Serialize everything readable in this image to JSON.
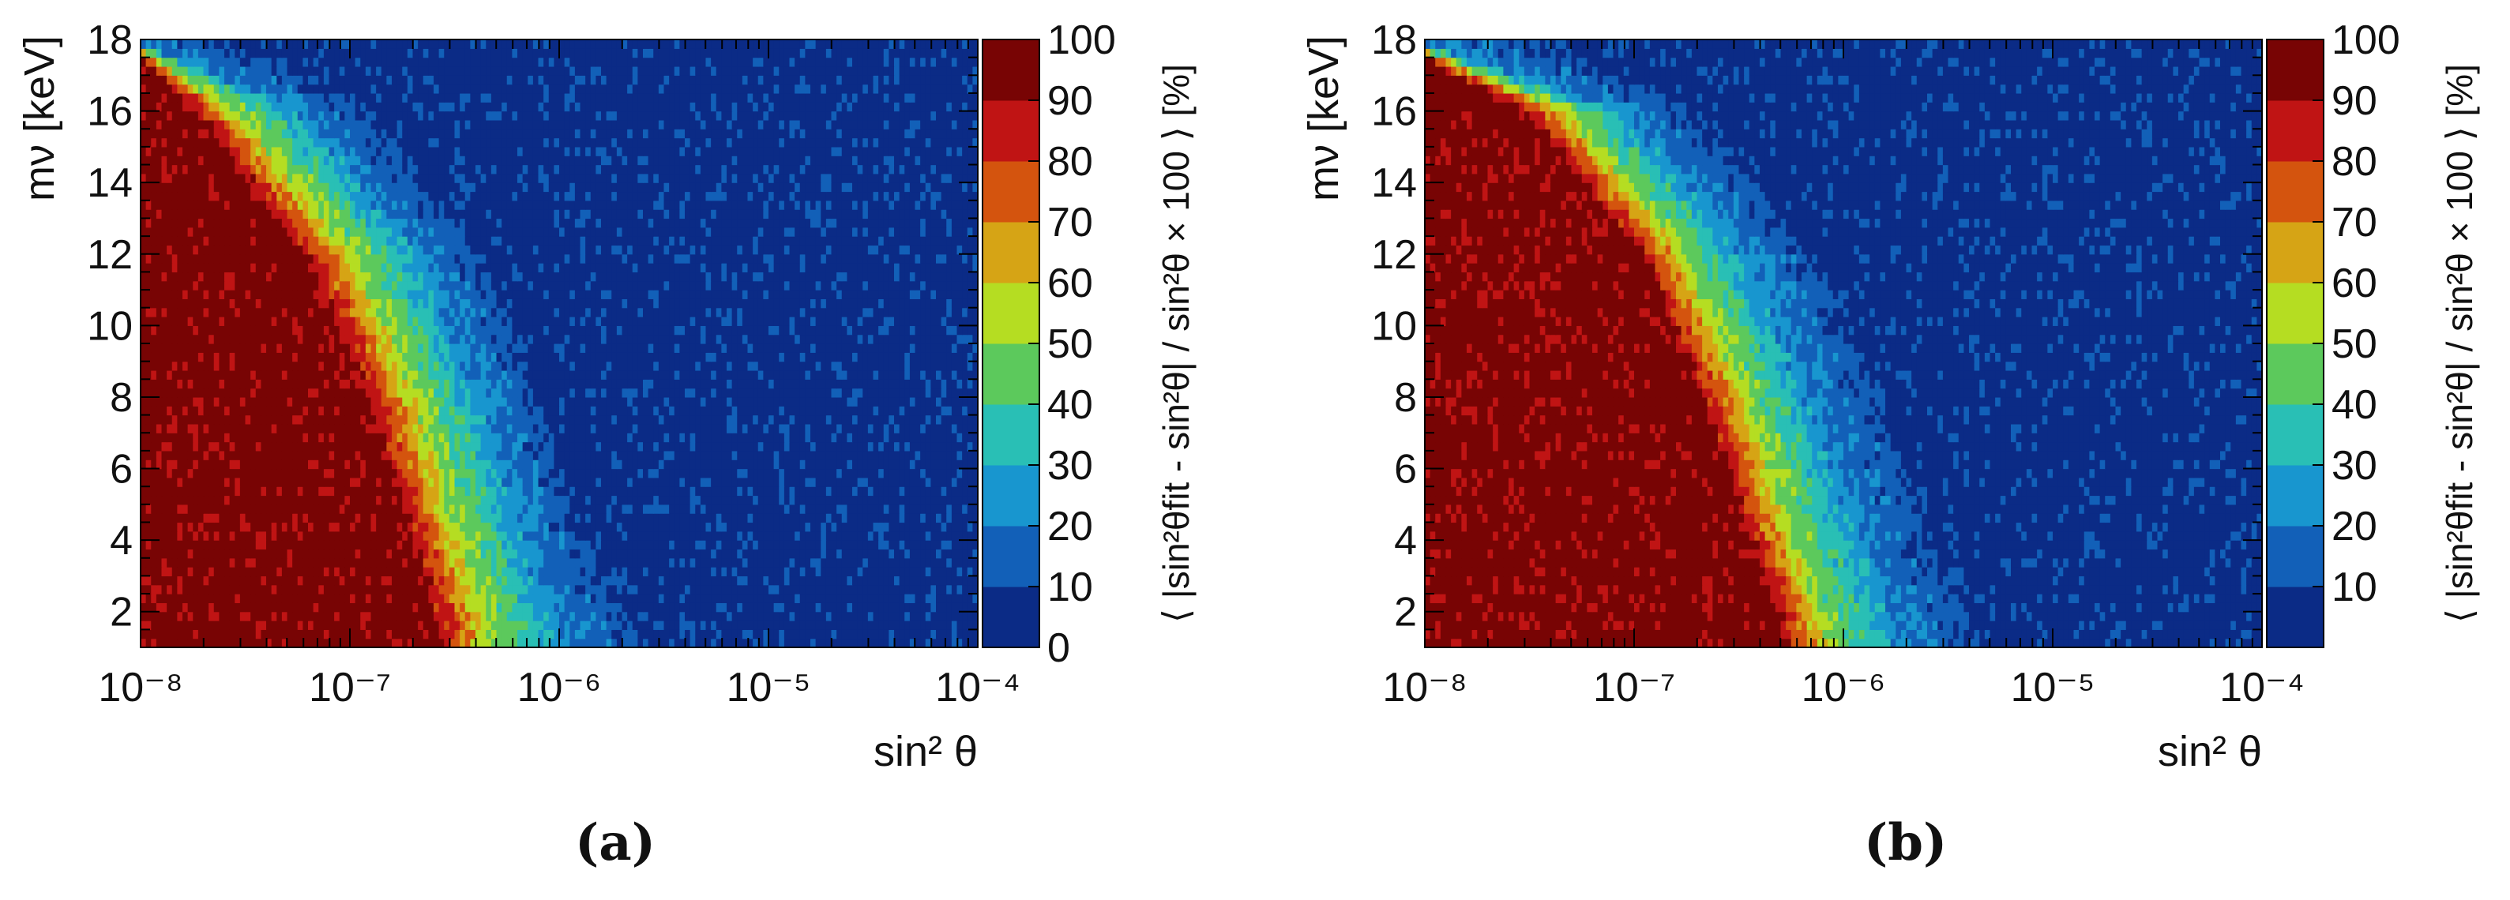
{
  "chart_data": [
    {
      "type": "heatmap",
      "panel_label": "(a)",
      "x_scale": "log",
      "xlim": [
        1e-08,
        0.0001
      ],
      "ylim": [
        1,
        18
      ],
      "xlabel": "sin² θ",
      "ylabel": "mν [keV]",
      "x_tick_values": [
        1e-08,
        1e-07,
        1e-06,
        1e-05,
        0.0001
      ],
      "x_tick_labels": [
        "10⁻⁸",
        "10⁻⁷",
        "10⁻⁶",
        "10⁻⁵",
        "10⁻⁴"
      ],
      "y_ticks": [
        2,
        4,
        6,
        8,
        10,
        12,
        14,
        16,
        18
      ],
      "y_tick_labels": [
        "2",
        "4",
        "6",
        "8",
        "10",
        "12",
        "14",
        "16",
        "18"
      ],
      "colorbar": {
        "label": "⟨ |sin²θfit - sin²θ| / sin²θ × 100 ⟩ [%]",
        "range": [
          0,
          100
        ],
        "ticks": [
          0,
          10,
          20,
          30,
          40,
          50,
          60,
          70,
          80,
          90,
          100
        ],
        "tick_labels": [
          "0",
          "10",
          "20",
          "30",
          "40",
          "50",
          "60",
          "70",
          "80",
          "90",
          "100"
        ]
      },
      "contours": [
        {
          "level": 90,
          "mass_keV": [
            1,
            4,
            8,
            12,
            16,
            17.5
          ],
          "sin2theta": [
            2.8e-07,
            2e-07,
            1.2e-07,
            6e-08,
            1.8e-08,
            1e-08
          ]
        },
        {
          "level": 50,
          "mass_keV": [
            1,
            4,
            8,
            12,
            16,
            17.7
          ],
          "sin2theta": [
            5e-07,
            3.5e-07,
            2.2e-07,
            1.1e-07,
            3e-08,
            1e-08
          ]
        },
        {
          "level": 20,
          "mass_keV": [
            1,
            4,
            8,
            12,
            16,
            17.9
          ],
          "sin2theta": [
            1.2e-06,
            7.5e-07,
            4.6e-07,
            2.3e-07,
            6.5e-08,
            1e-08
          ]
        },
        {
          "level": 10,
          "mass_keV": [
            1,
            4,
            8,
            12,
            16,
            18
          ],
          "sin2theta": [
            2.5e-06,
            1.4e-06,
            8e-07,
            4.2e-07,
            1.3e-07,
            2.5e-08
          ]
        }
      ]
    },
    {
      "type": "heatmap",
      "panel_label": "(b)",
      "x_scale": "log",
      "xlim": [
        1e-08,
        0.0001
      ],
      "ylim": [
        1,
        18
      ],
      "xlabel": "sin² θ",
      "ylabel": "mν [keV]",
      "x_tick_values": [
        1e-08,
        1e-07,
        1e-06,
        1e-05,
        0.0001
      ],
      "x_tick_labels": [
        "10⁻⁸",
        "10⁻⁷",
        "10⁻⁶",
        "10⁻⁵",
        "10⁻⁴"
      ],
      "y_ticks": [
        2,
        4,
        6,
        8,
        10,
        12,
        14,
        16,
        18
      ],
      "y_tick_labels": [
        "2",
        "4",
        "6",
        "8",
        "10",
        "12",
        "14",
        "16",
        "18"
      ],
      "colorbar": {
        "label": "⟨ |sin²θfit - sin²θ| / sin²θ × 100 ⟩ [%]",
        "range": [
          0,
          100
        ],
        "ticks": [
          10,
          20,
          30,
          40,
          50,
          60,
          70,
          80,
          90,
          100
        ],
        "tick_labels": [
          "10",
          "20",
          "30",
          "40",
          "50",
          "60",
          "70",
          "80",
          "90",
          "100"
        ]
      },
      "contours": [
        {
          "level": 90,
          "mass_keV": [
            1,
            4,
            8,
            12,
            16,
            17.5
          ],
          "sin2theta": [
            5.5e-07,
            3.6e-07,
            2.1e-07,
            1.1e-07,
            3e-08,
            1e-08
          ]
        },
        {
          "level": 50,
          "mass_keV": [
            1,
            4,
            8,
            12,
            16,
            17.7
          ],
          "sin2theta": [
            9e-07,
            6e-07,
            3.6e-07,
            1.8e-07,
            5e-08,
            1e-08
          ]
        },
        {
          "level": 20,
          "mass_keV": [
            1,
            4,
            8,
            12,
            16,
            17.9
          ],
          "sin2theta": [
            2e-06,
            1.3e-06,
            7.5e-07,
            3.8e-07,
            1e-07,
            1e-08
          ]
        },
        {
          "level": 10,
          "mass_keV": [
            1,
            4,
            8,
            12,
            16,
            18
          ],
          "sin2theta": [
            4.5e-06,
            2.7e-06,
            1.5e-06,
            7.5e-07,
            2e-07,
            3.5e-08
          ]
        }
      ]
    }
  ],
  "colors": {
    "palette": [
      "#0b2b86",
      "#1260b8",
      "#1896cf",
      "#29bfb5",
      "#5cc95c",
      "#b5dd22",
      "#d6a415",
      "#d4540e",
      "#c01414",
      "#780404"
    ]
  }
}
